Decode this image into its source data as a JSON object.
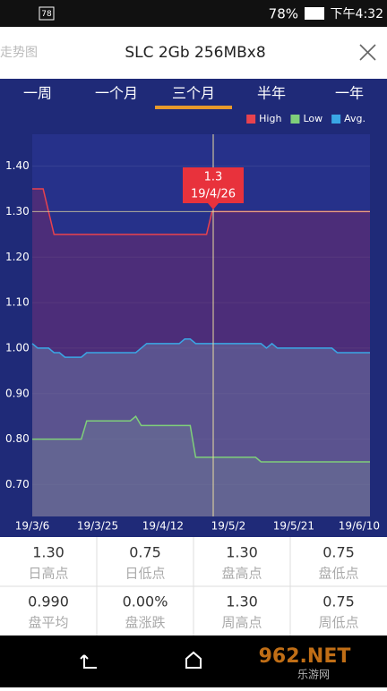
{
  "status_bar": {
    "battery_icon": "78",
    "battery": "78%",
    "time": "下午4:32"
  },
  "header": {
    "back": "走势图",
    "title": "SLC 2Gb 256MBx8"
  },
  "tabs": [
    "一周",
    "一个月",
    "三个月",
    "半年",
    "一年"
  ],
  "chart_data": {
    "type": "line",
    "categories": [
      "19/3/6",
      null,
      null,
      null,
      null,
      null,
      null,
      null,
      null,
      null,
      null,
      null,
      "19/3/25",
      null,
      null,
      null,
      null,
      null,
      null,
      null,
      null,
      null,
      null,
      null,
      "19/4/12",
      null,
      null,
      null,
      null,
      null,
      null,
      null,
      null,
      null,
      null,
      null,
      "19/5/2",
      null,
      null,
      null,
      null,
      null,
      null,
      null,
      null,
      null,
      null,
      null,
      "19/5/21",
      null,
      null,
      null,
      null,
      null,
      null,
      null,
      null,
      null,
      null,
      null,
      "19/6/10",
      null,
      null
    ],
    "series": [
      {
        "name": "High",
        "color": "#e8424e",
        "values": [
          1.35,
          1.35,
          1.35,
          1.3,
          1.25,
          1.25,
          1.25,
          1.25,
          1.25,
          1.25,
          1.25,
          1.25,
          1.25,
          1.25,
          1.25,
          1.25,
          1.25,
          1.25,
          1.25,
          1.25,
          1.25,
          1.25,
          1.25,
          1.25,
          1.25,
          1.25,
          1.25,
          1.25,
          1.25,
          1.25,
          1.25,
          1.25,
          1.25,
          1.3,
          1.3,
          1.3,
          1.3,
          1.3,
          1.3,
          1.3,
          1.3,
          1.3,
          1.3,
          1.3,
          1.3,
          1.3,
          1.3,
          1.3,
          1.3,
          1.3,
          1.3,
          1.3,
          1.3,
          1.3,
          1.3,
          1.3,
          1.3,
          1.3,
          1.3,
          1.3,
          1.3,
          1.3,
          1.3
        ]
      },
      {
        "name": "Low",
        "color": "#7fcf7a",
        "values": [
          0.8,
          0.8,
          0.8,
          0.8,
          0.8,
          0.8,
          0.8,
          0.8,
          0.8,
          0.8,
          0.84,
          0.84,
          0.84,
          0.84,
          0.84,
          0.84,
          0.84,
          0.84,
          0.84,
          0.85,
          0.83,
          0.83,
          0.83,
          0.83,
          0.83,
          0.83,
          0.83,
          0.83,
          0.83,
          0.83,
          0.76,
          0.76,
          0.76,
          0.76,
          0.76,
          0.76,
          0.76,
          0.76,
          0.76,
          0.76,
          0.76,
          0.76,
          0.75,
          0.75,
          0.75,
          0.75,
          0.75,
          0.75,
          0.75,
          0.75,
          0.75,
          0.75,
          0.75,
          0.75,
          0.75,
          0.75,
          0.75,
          0.75,
          0.75,
          0.75,
          0.75,
          0.75,
          0.75
        ]
      },
      {
        "name": "Avg.",
        "color": "#3aa7e6",
        "values": [
          1.01,
          1.0,
          1.0,
          1.0,
          0.99,
          0.99,
          0.98,
          0.98,
          0.98,
          0.98,
          0.99,
          0.99,
          0.99,
          0.99,
          0.99,
          0.99,
          0.99,
          0.99,
          0.99,
          0.99,
          1.0,
          1.01,
          1.01,
          1.01,
          1.01,
          1.01,
          1.01,
          1.01,
          1.02,
          1.02,
          1.01,
          1.01,
          1.01,
          1.01,
          1.01,
          1.01,
          1.01,
          1.01,
          1.01,
          1.01,
          1.01,
          1.01,
          1.01,
          1.0,
          1.01,
          1.0,
          1.0,
          1.0,
          1.0,
          1.0,
          1.0,
          1.0,
          1.0,
          1.0,
          1.0,
          1.0,
          0.99,
          0.99,
          0.99,
          0.99,
          0.99,
          0.99,
          0.99
        ]
      }
    ],
    "ylim": [
      0.63,
      1.47
    ],
    "yticks": [
      {
        "value": 0.7,
        "label": "0.70"
      },
      {
        "value": 0.8,
        "label": "0.80"
      },
      {
        "value": 0.9,
        "label": "0.90"
      },
      {
        "value": 1.0,
        "label": "1.00"
      },
      {
        "value": 1.1,
        "label": "1.10"
      },
      {
        "value": 1.2,
        "label": "1.20"
      },
      {
        "value": 1.3,
        "label": "1.30"
      },
      {
        "value": 1.4,
        "label": "1.40"
      }
    ],
    "grid": true,
    "legend": "top-right",
    "tooltip": {
      "value": "1.3",
      "date": "19/4/26"
    }
  },
  "stats": [
    [
      {
        "value": "1.30",
        "label": "日高点"
      },
      {
        "value": "0.75",
        "label": "日低点"
      },
      {
        "value": "1.30",
        "label": "盘高点"
      },
      {
        "value": "0.75",
        "label": "盘低点"
      }
    ],
    [
      {
        "value": "0.990",
        "label": "盘平均"
      },
      {
        "value": "0.00%",
        "label": "盘涨跌"
      },
      {
        "value": "1.30",
        "label": "周高点"
      },
      {
        "value": "0.75",
        "label": "周低点"
      }
    ]
  ],
  "watermark": [
    "962.NET",
    "乐游网"
  ]
}
